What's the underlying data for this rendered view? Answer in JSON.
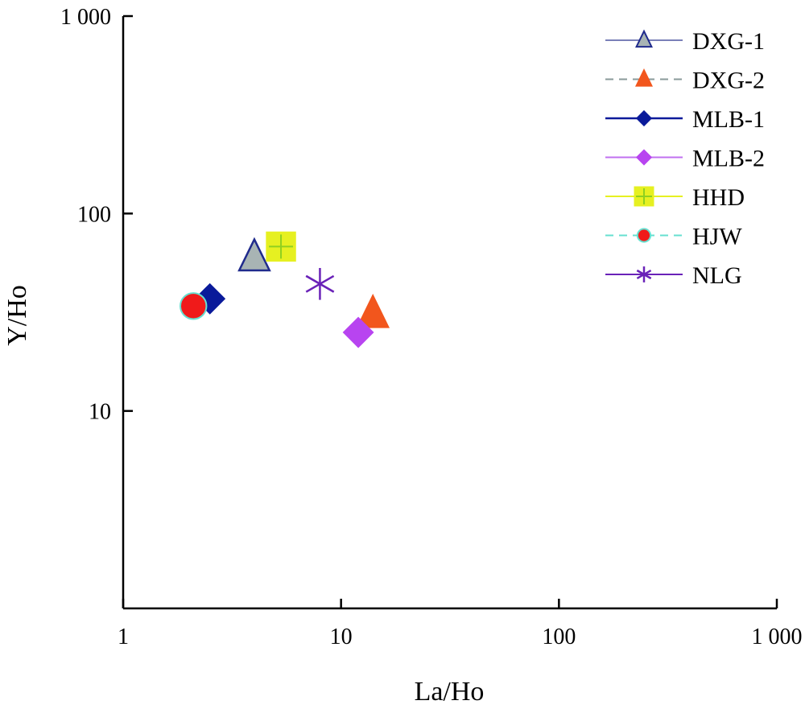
{
  "chart_data": {
    "type": "scatter",
    "title": "",
    "xlabel": "La/Ho",
    "ylabel": "Y/Ho",
    "xscale": "log",
    "yscale": "log",
    "xlim": [
      1,
      1000
    ],
    "ylim": [
      1,
      1000
    ],
    "x_ticks": [
      {
        "value": 1,
        "label": "1"
      },
      {
        "value": 10,
        "label": "10"
      },
      {
        "value": 100,
        "label": "100"
      },
      {
        "value": 1000,
        "label": "1 000"
      }
    ],
    "y_ticks": [
      {
        "value": 10,
        "label": "10"
      },
      {
        "value": 100,
        "label": "100"
      },
      {
        "value": 1000,
        "label": "1 000"
      }
    ],
    "grid": false,
    "legend_position": "top-right",
    "series": [
      {
        "name": "DXG-1",
        "marker": "triangle-open",
        "line": "solid",
        "color": "#1f2a8c",
        "line_color": "#7a80b8",
        "fill": "#a8b4b4",
        "x": 4.0,
        "y": 60
      },
      {
        "name": "DXG-2",
        "marker": "triangle",
        "line": "dashed",
        "color": "#f2561d",
        "line_color": "#8a9a9a",
        "fill": "#f2561d",
        "x": 14.0,
        "y": 31
      },
      {
        "name": "MLB-1",
        "marker": "diamond",
        "line": "solid",
        "color": "#0a1a9a",
        "line_color": "#0a1a9a",
        "fill": "#0a1a9a",
        "x": 2.5,
        "y": 37
      },
      {
        "name": "MLB-2",
        "marker": "diamond",
        "line": "solid",
        "color": "#b844f0",
        "line_color": "#c070f0",
        "fill": "#b844f0",
        "x": 12.0,
        "y": 25
      },
      {
        "name": "HHD",
        "marker": "square-plus",
        "line": "solid",
        "color": "#e6f021",
        "line_color": "#e6f021",
        "fill": "#e6f021",
        "x": 5.3,
        "y": 68
      },
      {
        "name": "HJW",
        "marker": "circle",
        "line": "dashed",
        "color": "#f01a1a",
        "line_color": "#66e0d0",
        "fill": "#f01a1a",
        "x": 2.1,
        "y": 34
      },
      {
        "name": "NLG",
        "marker": "asterisk",
        "line": "solid",
        "color": "#6a22b8",
        "line_color": "#6a22b8",
        "fill": "none",
        "x": 8.0,
        "y": 44
      }
    ]
  }
}
